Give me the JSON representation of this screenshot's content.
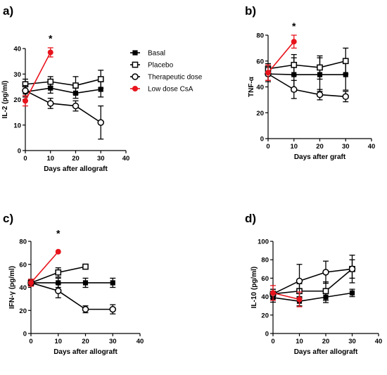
{
  "legend": [
    {
      "key": "basal",
      "label": "Basal",
      "marker": "filled-square",
      "color": "#000000"
    },
    {
      "key": "placebo",
      "label": "Placebo",
      "marker": "open-square",
      "color": "#000000"
    },
    {
      "key": "therapeutic",
      "label": "Therapeutic dose",
      "marker": "open-circle",
      "color": "#000000"
    },
    {
      "key": "lowdose",
      "label": "Low dose CsA",
      "marker": "filled-circle",
      "color": "#e8141c"
    }
  ],
  "chart_data": [
    {
      "type": "line",
      "panel": "a)",
      "xlabel": "Days after allograft",
      "ylabel": "IL-2 (pg/ml)",
      "xlim": [
        0,
        40
      ],
      "ylim": [
        0,
        40
      ],
      "xticks": [
        0,
        10,
        20,
        30,
        40
      ],
      "yticks": [
        0,
        10,
        20,
        30,
        40
      ],
      "annotation": "*",
      "annotation_at": [
        10,
        44
      ],
      "series": [
        {
          "key": "basal",
          "x": [
            0,
            10,
            20,
            30
          ],
          "y": [
            23,
            24.5,
            22.5,
            24
          ],
          "err": [
            2,
            2,
            2,
            3
          ]
        },
        {
          "key": "placebo",
          "x": [
            0,
            10,
            20,
            30
          ],
          "y": [
            26,
            27,
            25.5,
            28
          ],
          "err": [
            2,
            2,
            3.5,
            3.5
          ]
        },
        {
          "key": "therapeutic",
          "x": [
            0,
            10,
            20,
            30
          ],
          "y": [
            23.5,
            18.5,
            17.5,
            11
          ],
          "err": [
            2,
            2,
            2,
            6.5
          ]
        },
        {
          "key": "lowdose",
          "x": [
            0,
            10
          ],
          "y": [
            19.5,
            38.5
          ],
          "err": [
            2,
            1.8
          ]
        }
      ]
    },
    {
      "type": "line",
      "panel": "b)",
      "xlabel": "Days after graft",
      "ylabel": "TNF-α",
      "xlim": [
        0,
        40
      ],
      "ylim": [
        0,
        80
      ],
      "xticks": [
        0,
        10,
        20,
        30,
        40
      ],
      "yticks": [
        0,
        20,
        40,
        60,
        80
      ],
      "annotation": "*",
      "annotation_at": [
        10,
        87
      ],
      "series": [
        {
          "key": "basal",
          "x": [
            0,
            10,
            20,
            30
          ],
          "y": [
            50,
            49.5,
            49.5,
            49.5
          ],
          "err": [
            6,
            13,
            13,
            12
          ]
        },
        {
          "key": "placebo",
          "x": [
            0,
            10,
            20,
            30
          ],
          "y": [
            54,
            57,
            55,
            60
          ],
          "err": [
            4,
            8,
            9,
            10
          ]
        },
        {
          "key": "therapeutic",
          "x": [
            0,
            10,
            20,
            30
          ],
          "y": [
            50,
            38,
            34,
            32.5
          ],
          "err": [
            5,
            7,
            4,
            4
          ]
        },
        {
          "key": "lowdose",
          "x": [
            0,
            10
          ],
          "y": [
            51,
            75
          ],
          "err": [
            6,
            5
          ]
        }
      ]
    },
    {
      "type": "line",
      "panel": "c)",
      "xlabel": "Days after allograft",
      "ylabel": "IFN-γ (pg/ml)",
      "xlim": [
        0,
        40
      ],
      "ylim": [
        0,
        80
      ],
      "xticks": [
        0,
        10,
        20,
        30,
        40
      ],
      "yticks": [
        0,
        20,
        40,
        60,
        80
      ],
      "annotation": "*",
      "annotation_at": [
        10,
        87
      ],
      "series": [
        {
          "key": "basal",
          "x": [
            0,
            10,
            20,
            30
          ],
          "y": [
            44,
            44,
            44,
            44
          ],
          "err": [
            3,
            4,
            4,
            4
          ]
        },
        {
          "key": "placebo",
          "x": [
            0,
            10,
            20
          ],
          "y": [
            44,
            53,
            58
          ],
          "err": [
            3,
            4,
            0
          ]
        },
        {
          "key": "therapeutic",
          "x": [
            0,
            10,
            20,
            30
          ],
          "y": [
            44,
            37,
            21,
            21
          ],
          "err": [
            3,
            6,
            3,
            4
          ]
        },
        {
          "key": "lowdose",
          "x": [
            0,
            10
          ],
          "y": [
            44,
            71
          ],
          "err": [
            3,
            0
          ]
        }
      ]
    },
    {
      "type": "line",
      "panel": "d)",
      "xlabel": "Days after allograft",
      "ylabel": "IL-10 (pg/ml)",
      "xlim": [
        0,
        40
      ],
      "ylim": [
        0,
        100
      ],
      "xticks": [
        0,
        10,
        20,
        30,
        40
      ],
      "yticks": [
        0,
        20,
        40,
        60,
        80,
        100
      ],
      "annotation": "",
      "series": [
        {
          "key": "basal",
          "x": [
            0,
            10,
            20,
            30
          ],
          "y": [
            39,
            35,
            39.5,
            44
          ],
          "err": [
            5,
            5,
            6,
            4
          ]
        },
        {
          "key": "placebo",
          "x": [
            0,
            10,
            20,
            30
          ],
          "y": [
            43,
            46,
            46,
            70
          ],
          "err": [
            5,
            8,
            10,
            10
          ]
        },
        {
          "key": "therapeutic",
          "x": [
            0,
            10,
            20,
            30
          ],
          "y": [
            43,
            57,
            66.5,
            70
          ],
          "err": [
            5,
            18,
            12,
            15
          ]
        },
        {
          "key": "lowdose",
          "x": [
            0,
            10
          ],
          "y": [
            44,
            37
          ],
          "err": [
            8,
            8
          ]
        }
      ]
    }
  ]
}
